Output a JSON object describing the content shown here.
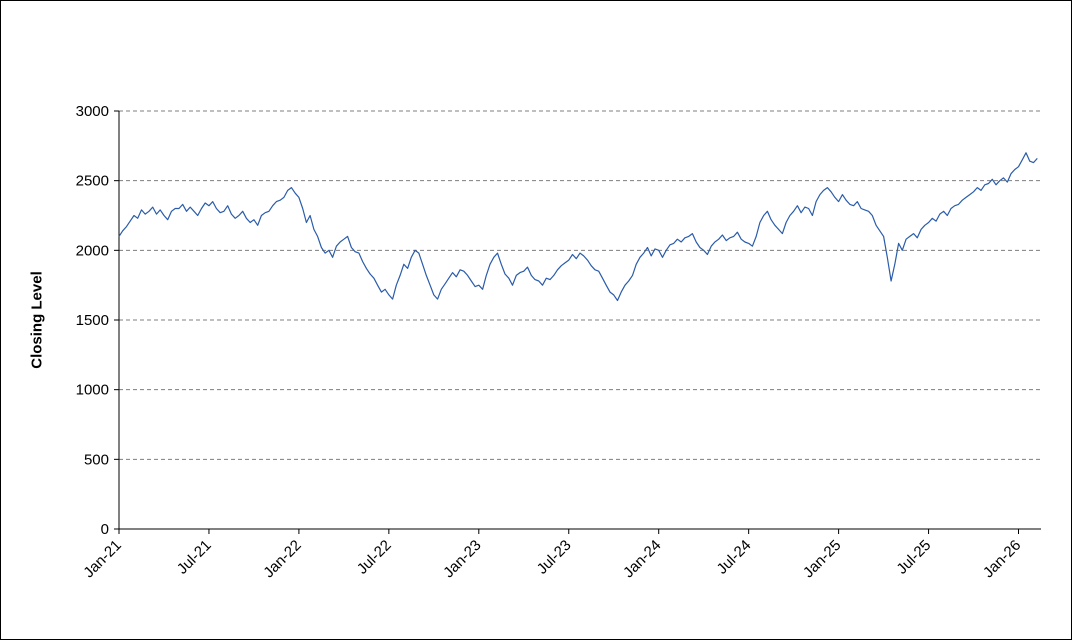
{
  "page": {
    "background": "#ffffff",
    "border_color": "#000000"
  },
  "chart_data": {
    "type": "line",
    "title": "",
    "xlabel": "",
    "ylabel": "Closing Level",
    "ylim": [
      0,
      3000
    ],
    "ytick_step": 500,
    "y_tick_labels": [
      "0",
      "500",
      "1000",
      "1500",
      "2000",
      "2500",
      "3000"
    ],
    "xlim": [
      0,
      61.5
    ],
    "x_tick_positions": [
      0,
      6,
      12,
      18,
      24,
      30,
      36,
      42,
      48,
      54,
      60
    ],
    "x_tick_labels": [
      "Jan-21",
      "Jul-21",
      "Jan-22",
      "Jul-22",
      "Jan-23",
      "Jul-23",
      "Jan-24",
      "Jul-24",
      "Jan-25",
      "Jul-25",
      "Jan-26"
    ],
    "x_start": 0,
    "x_step": 0.25,
    "gridlines": {
      "style": "dashed",
      "color": "#7f7f7f"
    },
    "axis_color": "#000000",
    "legend": "none",
    "series": [
      {
        "name": "Closing Level",
        "color": "#2a5caa",
        "values": [
          2100,
          2140,
          2170,
          2210,
          2250,
          2230,
          2290,
          2260,
          2280,
          2310,
          2260,
          2290,
          2250,
          2220,
          2280,
          2300,
          2300,
          2330,
          2280,
          2310,
          2280,
          2250,
          2300,
          2340,
          2320,
          2350,
          2300,
          2270,
          2280,
          2320,
          2260,
          2230,
          2250,
          2280,
          2230,
          2200,
          2220,
          2180,
          2250,
          2270,
          2280,
          2320,
          2350,
          2360,
          2380,
          2430,
          2450,
          2410,
          2380,
          2300,
          2200,
          2250,
          2150,
          2100,
          2020,
          1980,
          2000,
          1950,
          2030,
          2060,
          2080,
          2100,
          2020,
          1990,
          1980,
          1920,
          1870,
          1830,
          1800,
          1750,
          1700,
          1720,
          1680,
          1650,
          1750,
          1820,
          1900,
          1870,
          1950,
          2000,
          1980,
          1900,
          1820,
          1750,
          1680,
          1650,
          1720,
          1760,
          1800,
          1840,
          1810,
          1860,
          1850,
          1820,
          1780,
          1740,
          1750,
          1720,
          1820,
          1900,
          1950,
          1980,
          1900,
          1830,
          1800,
          1750,
          1820,
          1840,
          1850,
          1880,
          1820,
          1790,
          1780,
          1750,
          1800,
          1790,
          1820,
          1860,
          1890,
          1910,
          1930,
          1970,
          1940,
          1980,
          1960,
          1930,
          1890,
          1860,
          1850,
          1800,
          1750,
          1700,
          1680,
          1640,
          1700,
          1750,
          1780,
          1820,
          1900,
          1950,
          1980,
          2020,
          1960,
          2010,
          2000,
          1950,
          2000,
          2040,
          2050,
          2080,
          2060,
          2090,
          2100,
          2120,
          2060,
          2020,
          2000,
          1970,
          2030,
          2060,
          2080,
          2110,
          2070,
          2090,
          2100,
          2130,
          2080,
          2060,
          2050,
          2030,
          2100,
          2200,
          2250,
          2280,
          2220,
          2180,
          2150,
          2120,
          2200,
          2250,
          2280,
          2320,
          2270,
          2310,
          2300,
          2250,
          2350,
          2400,
          2430,
          2450,
          2420,
          2380,
          2350,
          2400,
          2360,
          2330,
          2320,
          2350,
          2300,
          2290,
          2280,
          2250,
          2180,
          2140,
          2100,
          1950,
          1780,
          1900,
          2050,
          2000,
          2080,
          2100,
          2120,
          2090,
          2150,
          2180,
          2200,
          2230,
          2210,
          2260,
          2280,
          2250,
          2300,
          2320,
          2330,
          2360,
          2380,
          2400,
          2420,
          2450,
          2430,
          2470,
          2480,
          2510,
          2470,
          2500,
          2520,
          2490,
          2550,
          2580,
          2600,
          2650,
          2700,
          2640,
          2630,
          2660
        ]
      }
    ]
  }
}
